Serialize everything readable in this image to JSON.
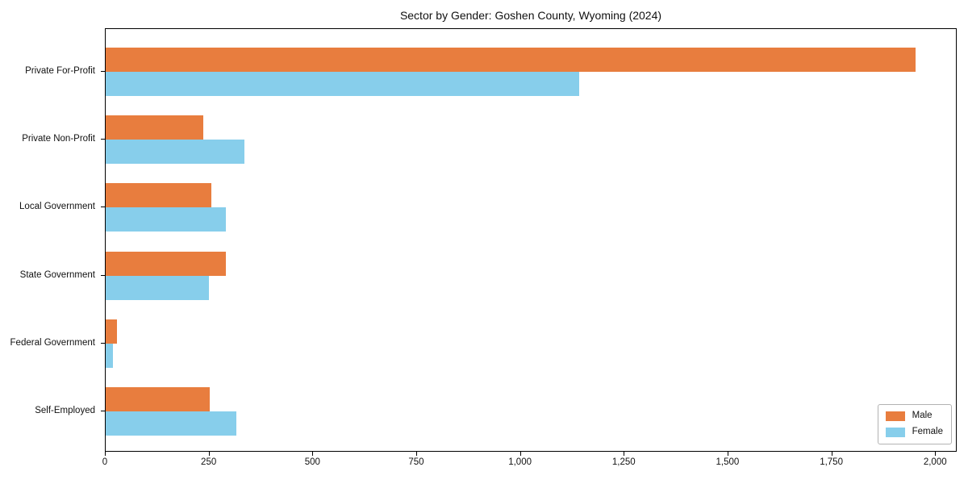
{
  "chart_data": {
    "type": "bar",
    "orientation": "horizontal",
    "title": "Sector by Gender: Goshen County, Wyoming (2024)",
    "categories": [
      "Private For-Profit",
      "Private Non-Profit",
      "Local Government",
      "State Government",
      "Federal Government",
      "Self-Employed"
    ],
    "series": [
      {
        "name": "Male",
        "color": "#e87d3e",
        "values": [
          1950,
          235,
          255,
          290,
          28,
          250
        ]
      },
      {
        "name": "Female",
        "color": "#87ceeb",
        "values": [
          1140,
          335,
          290,
          248,
          17,
          315
        ]
      }
    ],
    "xlabel": "",
    "ylabel": "",
    "xlim": [
      0,
      2052
    ],
    "xtick_values": [
      0,
      250,
      500,
      750,
      1000,
      1250,
      1500,
      1750,
      2000
    ],
    "xtick_labels": [
      "0",
      "250",
      "500",
      "750",
      "1,000",
      "1,250",
      "1,500",
      "1,750",
      "2,000"
    ],
    "grid": false,
    "legend_position": "lower right"
  },
  "colors": {
    "axis": "#000000",
    "text": "#111111",
    "legend_border": "#b3b3b3",
    "background": "#ffffff"
  }
}
